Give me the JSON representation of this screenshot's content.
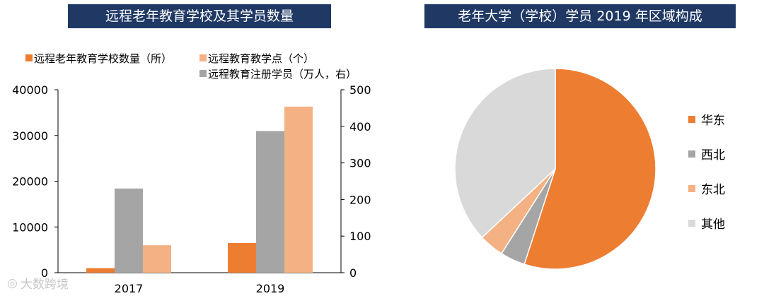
{
  "titles": {
    "left": "远程老年教育学校及其学员数量",
    "right": "老年大学（学校）学员 2019 年区域构成"
  },
  "watermark": "大数跨境",
  "chart_data": [
    {
      "type": "bar",
      "categories": [
        "2017",
        "2019"
      ],
      "series": [
        {
          "name": "远程老年教育学校数量（所）",
          "axis": "left",
          "color": "#ed7d31",
          "values": [
            1000,
            6500
          ]
        },
        {
          "name": "远程教育注册学员（万人，右）",
          "axis": "right",
          "color": "#a5a5a5",
          "values": [
            230,
            387
          ]
        },
        {
          "name": "远程教育教学点（个）",
          "axis": "left",
          "color": "#f4b183",
          "values": [
            6000,
            36300
          ]
        }
      ],
      "legend_order": [
        0,
        2,
        1
      ],
      "ylim_left": [
        0,
        40000
      ],
      "yticks_left": [
        0,
        10000,
        20000,
        30000,
        40000
      ],
      "ylim_right": [
        0,
        500
      ],
      "yticks_right": [
        0,
        100,
        200,
        300,
        400,
        500
      ],
      "legend_position": "top"
    },
    {
      "type": "pie",
      "slices": [
        {
          "name": "华东",
          "value": 55,
          "color": "#ed7d31"
        },
        {
          "name": "西北",
          "value": 4,
          "color": "#a5a5a5"
        },
        {
          "name": "东北",
          "value": 4,
          "color": "#f4b183"
        },
        {
          "name": "其他",
          "value": 37,
          "color": "#d9d9d9"
        }
      ],
      "start_angle_deg": 0,
      "direction": "clockwise",
      "legend_position": "right"
    }
  ]
}
